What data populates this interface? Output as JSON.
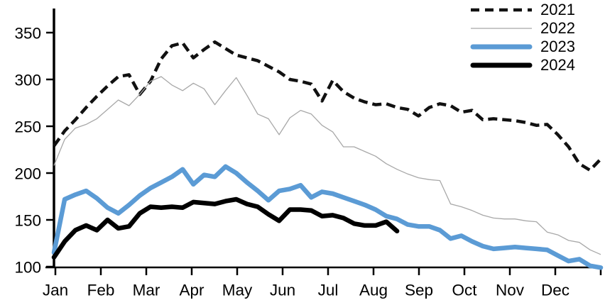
{
  "chart_data": {
    "type": "line",
    "title": "",
    "xlabel": "",
    "ylabel": "",
    "x_unit": "week-of-year (52 weekly points per series)",
    "months": [
      "Jan",
      "Feb",
      "Mar",
      "Apr",
      "May",
      "Jun",
      "Jul",
      "Aug",
      "Sep",
      "Oct",
      "Nov",
      "Dec"
    ],
    "y_ticks": [
      100,
      150,
      200,
      250,
      300,
      350
    ],
    "ylim": [
      100,
      375
    ],
    "grid": false,
    "legend_position": "top-right",
    "axis_color": "#000000",
    "series": [
      {
        "name": "2021",
        "style": "dashed",
        "color": "#111111",
        "width": 4.5,
        "values": [
          229,
          245,
          257,
          270,
          282,
          293,
          303,
          305,
          284,
          298,
          322,
          336,
          339,
          323,
          332,
          340,
          333,
          326,
          323,
          320,
          314,
          308,
          300,
          298,
          295,
          277,
          299,
          287,
          280,
          276,
          273,
          274,
          270,
          268,
          261,
          270,
          274,
          272,
          265,
          267,
          257,
          258,
          257,
          256,
          254,
          251,
          252,
          241,
          228,
          210,
          203,
          215
        ]
      },
      {
        "name": "2022",
        "style": "solid-thin",
        "color": "#a8a8a8",
        "width": 1.3,
        "values": [
          208,
          236,
          248,
          252,
          258,
          268,
          278,
          272,
          284,
          298,
          303,
          294,
          288,
          296,
          290,
          273,
          288,
          302,
          283,
          263,
          258,
          241,
          259,
          267,
          263,
          251,
          244,
          228,
          228,
          223,
          218,
          210,
          204,
          199,
          195,
          193,
          192,
          167,
          164,
          160,
          155,
          152,
          151,
          151,
          149,
          148,
          137,
          134,
          128,
          126,
          118,
          113
        ]
      },
      {
        "name": "2023",
        "style": "solid-thick",
        "color": "#5b9bd5",
        "width": 6.5,
        "values": [
          115,
          172,
          177,
          181,
          173,
          163,
          157,
          166,
          176,
          184,
          190,
          196,
          204,
          188,
          198,
          196,
          207,
          200,
          190,
          181,
          171,
          181,
          183,
          187,
          174,
          180,
          178,
          174,
          170,
          166,
          161,
          154,
          151,
          145,
          143,
          143,
          139,
          130,
          133,
          127,
          122,
          119,
          120,
          121,
          120,
          119,
          118,
          112,
          106,
          108,
          101,
          99
        ]
      },
      {
        "name": "2024",
        "style": "solid-thick",
        "color": "#000000",
        "width": 6.5,
        "values": [
          110,
          127,
          139,
          144,
          139,
          150,
          141,
          143,
          157,
          164,
          163,
          164,
          163,
          169,
          168,
          167,
          170,
          172,
          167,
          164,
          156,
          149,
          161,
          161,
          160,
          154,
          155,
          152,
          146,
          144,
          144,
          148,
          138
        ]
      }
    ]
  }
}
